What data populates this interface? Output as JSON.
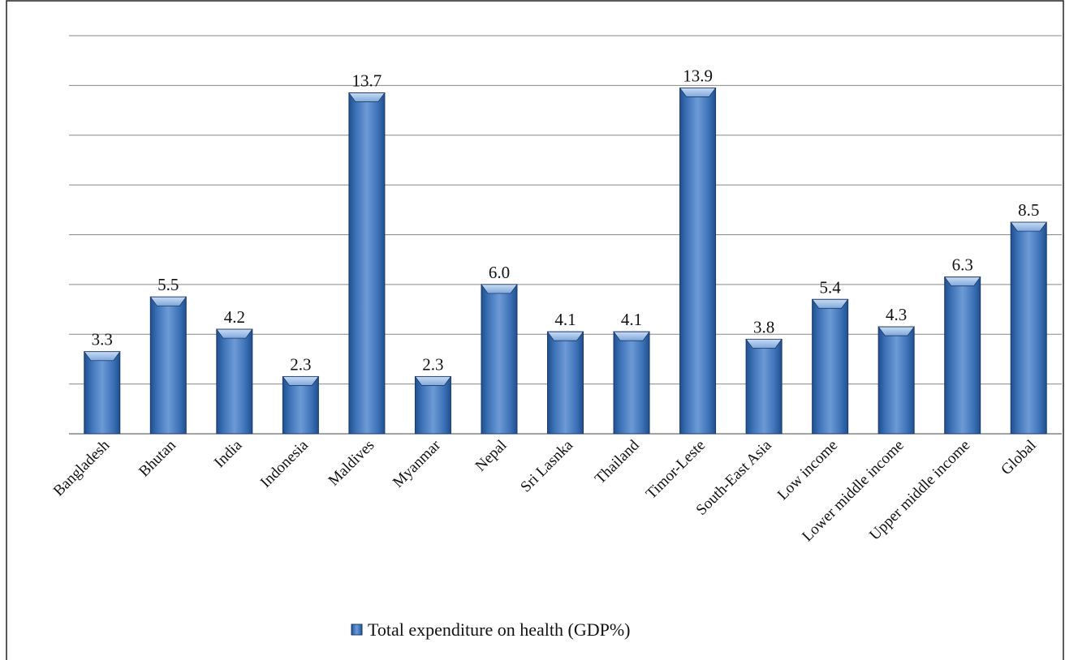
{
  "chart_data": {
    "type": "bar",
    "categories": [
      "Bangladesh",
      "Bhutan",
      "India",
      "Indonesia",
      "Maldives",
      "Myanmar",
      "Nepal",
      "Sri Lasnka",
      "Thailand",
      "Timor-Leste",
      "South-East Asia",
      "Low income",
      "Lower middle income",
      "Upper middle income",
      "Global"
    ],
    "series": [
      {
        "name": "Total expenditure on health (GDP%)",
        "color": "#4f81bd",
        "values": [
          3.3,
          5.5,
          4.2,
          2.3,
          13.7,
          2.3,
          6.0,
          4.1,
          4.1,
          13.9,
          3.8,
          5.4,
          4.3,
          6.3,
          8.5
        ],
        "value_labels": [
          "3.3",
          "5.5",
          "4.2",
          "2.3",
          "13.7",
          "2.3",
          "6.0",
          "4.1",
          "4.1",
          "13.9",
          "3.8",
          "5.4",
          "4.3",
          "6.3",
          "8.5"
        ]
      }
    ],
    "ylim": [
      0,
      16
    ],
    "yticks": [
      0,
      2,
      4,
      6,
      8,
      10,
      12,
      14,
      16
    ],
    "grid": true,
    "legend": "bottom"
  }
}
